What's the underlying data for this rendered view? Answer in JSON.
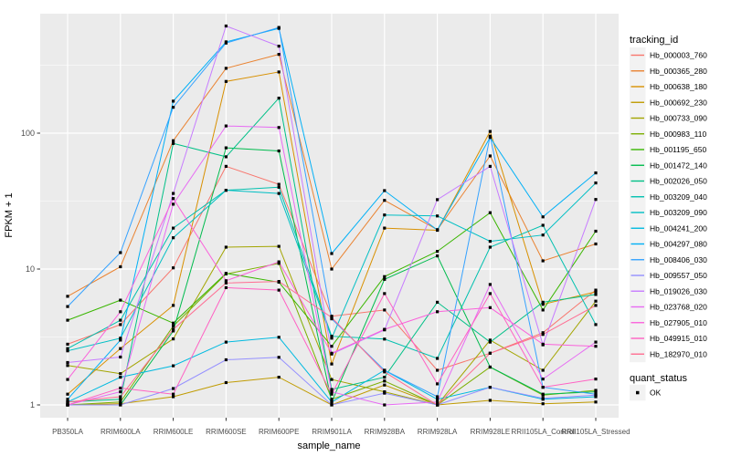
{
  "chart_data": {
    "type": "line",
    "title": "",
    "xlabel": "sample_name",
    "ylabel": "FPKM + 1",
    "y_scale": "log10",
    "ylim": [
      0.85,
      750
    ],
    "y_ticks": [
      1,
      10,
      100
    ],
    "y_tick_labels": [
      "1",
      "10",
      "100"
    ],
    "y_minor_breaks": [
      3.162,
      31.62,
      316.2
    ],
    "grid": "on",
    "categories": [
      "PB350LA",
      "RRIM600LA",
      "RRIM600LE",
      "RRIM600SE",
      "RRIM600PE",
      "RRIM901LA",
      "RRIM928BA",
      "RRIM928LA",
      "RRIM928LE",
      "RRII105LA_Control",
      "RRII105LA_Stressed"
    ],
    "series": [
      {
        "name": "Hb_000003_760",
        "color": "#F8766D",
        "values": [
          2.8,
          3.9,
          10.2,
          57,
          42,
          4.5,
          5.0,
          1.8,
          2.4,
          3.4,
          7.0
        ]
      },
      {
        "name": "Hb_000365_280",
        "color": "#EA8331",
        "values": [
          6.3,
          10.4,
          88,
          300,
          380,
          10.0,
          32,
          19.5,
          68,
          11.5,
          15.3
        ]
      },
      {
        "name": "Hb_000638_180",
        "color": "#D89000",
        "values": [
          1.2,
          2.6,
          5.4,
          240,
          282,
          2.0,
          20,
          19.3,
          103,
          5.5,
          6.8
        ]
      },
      {
        "name": "Hb_000692_230",
        "color": "#C09B00",
        "values": [
          1.0,
          1.02,
          1.15,
          1.46,
          1.6,
          1.0,
          1.4,
          1.0,
          1.08,
          1.02,
          1.05
        ]
      },
      {
        "name": "Hb_000733_090",
        "color": "#A3A500",
        "values": [
          1.95,
          1.7,
          3.06,
          14.5,
          14.7,
          1.54,
          1.25,
          1.0,
          3.0,
          1.8,
          5.8
        ]
      },
      {
        "name": "Hb_000983_110",
        "color": "#7CAE00",
        "values": [
          1.0,
          1.05,
          3.8,
          9.2,
          11.0,
          1.1,
          1.5,
          1.0,
          1.9,
          1.18,
          1.28
        ]
      },
      {
        "name": "Hb_001195_650",
        "color": "#39B600",
        "values": [
          4.2,
          5.9,
          4.0,
          9.3,
          8.0,
          2.7,
          8.8,
          13.5,
          26.0,
          5.0,
          19.0
        ]
      },
      {
        "name": "Hb_001472_140",
        "color": "#00BB4E",
        "values": [
          1.0,
          1.0,
          3.5,
          78,
          74,
          1.05,
          8.4,
          12.5,
          1.9,
          1.2,
          1.25
        ]
      },
      {
        "name": "Hb_002026_050",
        "color": "#00C087",
        "values": [
          1.05,
          1.1,
          84,
          67,
          181,
          1.3,
          1.6,
          5.7,
          2.9,
          5.7,
          6.5
        ]
      },
      {
        "name": "Hb_003209_040",
        "color": "#00C0AF",
        "values": [
          2.6,
          4.2,
          20,
          38,
          40,
          3.2,
          3.05,
          2.2,
          14.5,
          21.0,
          3.9
        ]
      },
      {
        "name": "Hb_003209_090",
        "color": "#00BFC4",
        "values": [
          2.5,
          3.1,
          17,
          38,
          36,
          3.1,
          25,
          24.6,
          16,
          17.8,
          43
        ]
      },
      {
        "name": "Hb_004241_200",
        "color": "#00BAE0",
        "values": [
          1.05,
          1.6,
          1.94,
          2.9,
          3.15,
          1.05,
          1.8,
          1.1,
          1.35,
          1.1,
          1.15
        ]
      },
      {
        "name": "Hb_004297_080",
        "color": "#00B0F6",
        "values": [
          1.1,
          3.0,
          172,
          470,
          590,
          13.0,
          37.8,
          19.4,
          93,
          24.2,
          51
        ]
      },
      {
        "name": "Hb_008406_030",
        "color": "#35A2FF",
        "values": [
          5.3,
          13.2,
          155,
          460,
          600,
          4.3,
          1.8,
          1.15,
          95,
          1.35,
          1.2
        ]
      },
      {
        "name": "Hb_009557_050",
        "color": "#9590FF",
        "values": [
          1.0,
          1.0,
          1.32,
          2.15,
          2.24,
          1.0,
          1.22,
          1.0,
          1.35,
          1.12,
          1.18
        ]
      },
      {
        "name": "Hb_019026_030",
        "color": "#C77CFF",
        "values": [
          2.05,
          2.25,
          36,
          615,
          437,
          2.37,
          3.57,
          32.4,
          57,
          2.77,
          32.5
        ]
      },
      {
        "name": "Hb_023768_020",
        "color": "#E76BF3",
        "values": [
          1.0,
          1.25,
          30,
          113,
          110,
          1.25,
          1.0,
          1.05,
          7.7,
          1.55,
          2.9
        ]
      },
      {
        "name": "Hb_027905_010",
        "color": "#FA62DB",
        "values": [
          1.54,
          4.85,
          33,
          8.2,
          11.3,
          2.4,
          3.6,
          4.85,
          5.2,
          2.8,
          2.7
        ]
      },
      {
        "name": "Hb_049915_010",
        "color": "#FF61C3",
        "values": [
          1.0,
          1.33,
          1.2,
          7.3,
          7.0,
          1.2,
          6.6,
          1.43,
          6.6,
          1.35,
          1.55
        ]
      },
      {
        "name": "Hb_182970_010",
        "color": "#FF6C91",
        "values": [
          1.05,
          1.15,
          3.6,
          7.9,
          8.1,
          4.4,
          1.75,
          1.0,
          2.4,
          3.3,
          5.4
        ]
      }
    ],
    "legend": {
      "title": "tracking_id",
      "position": "right",
      "swatch": "line"
    },
    "legend2": {
      "title": "quant_status",
      "items": [
        {
          "label": "OK",
          "marker": "square",
          "color": "#000000"
        }
      ]
    },
    "marker": {
      "shape": "square",
      "color": "#000000"
    },
    "style": {
      "panel_bg": "#EBEBEB",
      "grid_color": "#FFFFFF",
      "tick_color": "#333333",
      "axis_text_color": "#4D4D4D",
      "legend_key_bg": "#F2F2F2",
      "background": "#FFFFFF"
    }
  }
}
